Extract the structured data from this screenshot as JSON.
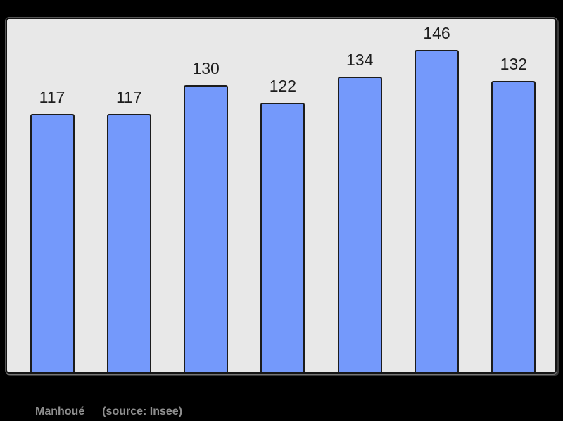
{
  "colors": {
    "page_bg": "#000000",
    "plot_bg": "#e8e8e8",
    "bar_fill": "#7499fb",
    "bar_border": "#1c1c1c",
    "frame_border": "#151515",
    "value_label": "#1d1d1d",
    "caption_text": "#8f8f8f"
  },
  "caption": {
    "name": "Manhoué",
    "source": "(source: Insee)"
  },
  "chart_data": {
    "type": "bar",
    "title": "",
    "xlabel": "",
    "ylabel": "",
    "categories": [
      "",
      "",
      "",
      "",
      "",
      "",
      ""
    ],
    "values": [
      117,
      117,
      130,
      122,
      134,
      146,
      132
    ],
    "data_labels": [
      "117",
      "117",
      "130",
      "122",
      "134",
      "146",
      "132"
    ],
    "ylim": [
      0,
      160
    ],
    "grid": false,
    "legend": false,
    "bar_color": "#7499fb",
    "caption": "Manhoué",
    "source": "(source: Insee)"
  }
}
